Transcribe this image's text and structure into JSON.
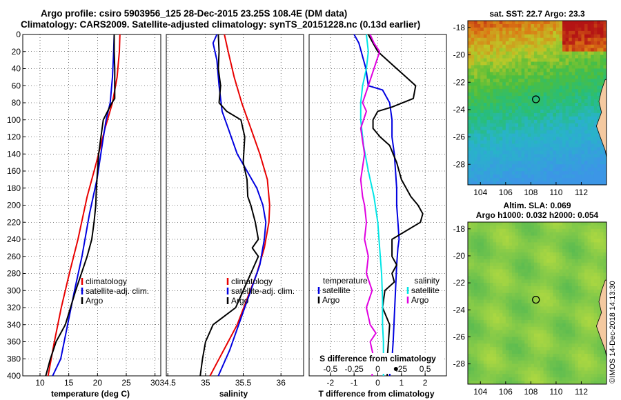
{
  "titles": {
    "line1": "Argo profile: csiro 5903956_125 28-Dec-2015 23.25S 108.4E (DM data)",
    "line2": "Climatology: CARS2009. Satellite-adjusted climatology: synTS_20151228.nc (0.13d earlier)"
  },
  "side_stamp": "©IMOS 14-Dec-2018 14:13:30",
  "colors": {
    "climatology": "#e80000",
    "satellite": "#0000e0",
    "argo": "#000000",
    "temp_diff_sat": "#00e5e5",
    "sal_diff_argo": "#e000e0",
    "map_marker": "#000000"
  },
  "chart_data": [
    {
      "id": "temperature",
      "type": "line",
      "xlabel": "temperature (deg C)",
      "xlim": [
        7,
        31
      ],
      "ylim": [
        0,
        400
      ],
      "y_inverted": true,
      "xticks": [
        10,
        15,
        20,
        25,
        30
      ],
      "yticks": [
        0,
        20,
        40,
        60,
        80,
        100,
        120,
        140,
        160,
        180,
        200,
        220,
        240,
        260,
        280,
        300,
        320,
        340,
        360,
        380,
        400
      ],
      "legend": [
        "climatology",
        "satellite-adj. clim.",
        "Argo"
      ],
      "series": [
        {
          "name": "climatology",
          "color": "climatology",
          "x": [
            23.9,
            23.8,
            23.4,
            22.6,
            21.3,
            19.8,
            18.2,
            16.6,
            15.1,
            13.7,
            12.5,
            11.4
          ],
          "y": [
            0,
            20,
            50,
            80,
            110,
            150,
            190,
            240,
            280,
            320,
            360,
            400
          ]
        },
        {
          "name": "satellite-adj. clim.",
          "color": "satellite",
          "x": [
            22.9,
            22.8,
            22.6,
            22.2,
            21.5,
            20.8,
            19.9,
            18.6,
            17.3,
            16.0,
            14.8,
            13.6,
            12.2
          ],
          "y": [
            0,
            20,
            50,
            80,
            100,
            130,
            170,
            210,
            260,
            300,
            340,
            380,
            400
          ]
        },
        {
          "name": "Argo",
          "color": "argo",
          "x": [
            22.9,
            22.9,
            23.0,
            23.0,
            23.0,
            22.5,
            21.0,
            20.6,
            20.2,
            20.0,
            19.8,
            19.7,
            19.4,
            19.0,
            18.2,
            17.2,
            16.2,
            15.3,
            14.4,
            13.6,
            12.8,
            12.3,
            11.8,
            11.4,
            11.0
          ],
          "y": [
            0,
            20,
            40,
            60,
            75,
            80,
            100,
            120,
            140,
            160,
            180,
            200,
            220,
            240,
            260,
            280,
            300,
            320,
            340,
            350,
            360,
            370,
            380,
            390,
            400
          ]
        }
      ]
    },
    {
      "id": "salinity",
      "type": "line",
      "xlabel": "salinity",
      "xlim": [
        34.48,
        36.3
      ],
      "ylim": [
        0,
        400
      ],
      "y_inverted": true,
      "xticks": [
        34.5,
        35,
        35.5,
        36
      ],
      "xticklabels": [
        "34.5",
        "35",
        "35.5",
        "36"
      ],
      "legend": [
        "climatology",
        "satellite-adj. clim.",
        "Argo"
      ],
      "series": [
        {
          "name": "climatology",
          "color": "climatology",
          "x": [
            35.25,
            35.3,
            35.38,
            35.48,
            35.6,
            35.72,
            35.82,
            35.85,
            35.84,
            35.78,
            35.68,
            35.55,
            35.42,
            35.3,
            35.18,
            35.06
          ],
          "y": [
            0,
            20,
            50,
            80,
            110,
            140,
            170,
            200,
            220,
            250,
            280,
            310,
            340,
            360,
            380,
            400
          ]
        },
        {
          "name": "satellite-adj. clim.",
          "color": "satellite",
          "x": [
            35.15,
            35.1,
            35.15,
            35.18,
            35.22,
            35.3,
            35.42,
            35.55,
            35.68,
            35.76,
            35.8,
            35.78,
            35.72,
            35.6,
            35.48,
            35.32,
            35.17
          ],
          "y": [
            0,
            10,
            30,
            60,
            90,
            110,
            140,
            160,
            180,
            200,
            220,
            240,
            270,
            300,
            330,
            370,
            400
          ]
        },
        {
          "name": "Argo",
          "color": "argo",
          "x": [
            35.17,
            35.18,
            35.17,
            35.2,
            35.18,
            35.28,
            35.47,
            35.52,
            35.5,
            35.55,
            35.56,
            35.6,
            35.66,
            35.7,
            35.62,
            35.7,
            35.6,
            35.5,
            35.4,
            35.25,
            35.1,
            35.0,
            34.96,
            34.93
          ],
          "y": [
            0,
            20,
            40,
            60,
            80,
            90,
            100,
            120,
            150,
            170,
            190,
            200,
            220,
            240,
            250,
            260,
            280,
            300,
            320,
            330,
            340,
            360,
            380,
            400
          ]
        }
      ]
    },
    {
      "id": "differences",
      "type": "line",
      "xlabel": "T difference from climatology",
      "xlabel_top": "S difference from climatology",
      "xlim": [
        -2.9,
        2.9
      ],
      "ylim": [
        0,
        400
      ],
      "y_inverted": true,
      "xticks": [
        -2,
        -1,
        0,
        1,
        2
      ],
      "s_xticks": [
        -0.5,
        -0.25,
        0,
        0.25,
        0.5
      ],
      "s_xticklabels": [
        "-0.5",
        "-0.25",
        "0",
        ".25",
        "0.5"
      ],
      "s_xlim": [
        -0.725,
        0.725
      ],
      "legend_temperature": {
        "title": "temperature",
        "items": [
          "satellite",
          "Argo"
        ]
      },
      "legend_salinity": {
        "title": "salinity",
        "items": [
          "satellite",
          "Argo"
        ]
      },
      "series": [
        {
          "name": "temperature satellite",
          "color": "satellite",
          "x": [
            -1.0,
            -0.8,
            -0.6,
            -0.5,
            -0.4,
            0.2,
            0.5,
            0.6,
            0.6,
            0.7,
            0.75,
            0.8,
            0.8,
            0.85,
            0.9,
            0.85,
            0.8,
            0.75,
            0.7,
            0.65,
            0.6,
            0.5
          ],
          "y": [
            0,
            10,
            30,
            40,
            60,
            65,
            80,
            100,
            120,
            140,
            160,
            180,
            200,
            220,
            240,
            250,
            270,
            300,
            330,
            360,
            380,
            400
          ]
        },
        {
          "name": "temperature Argo",
          "color": "argo",
          "x": [
            -0.4,
            -0.2,
            0.0,
            0.4,
            0.8,
            1.2,
            1.6,
            1.5,
            0.6,
            0.0,
            -0.2,
            -0.2,
            0.1,
            0.5,
            0.8,
            1.0,
            1.4,
            1.7,
            1.9,
            1.8,
            1.2,
            0.6,
            0.6,
            0.8,
            0.6,
            0.7,
            0.3,
            0.2,
            0.5,
            0.4,
            0.4
          ],
          "y": [
            0,
            10,
            20,
            30,
            40,
            50,
            60,
            75,
            85,
            90,
            100,
            110,
            120,
            130,
            150,
            170,
            190,
            200,
            210,
            220,
            230,
            240,
            260,
            270,
            280,
            290,
            300,
            320,
            340,
            380,
            400
          ]
        },
        {
          "name": "salinity satellite",
          "color": "temp_diff_sat",
          "s_x": [
            -0.12,
            -0.1,
            -0.12,
            -0.16,
            -0.18,
            -0.18,
            -0.15,
            -0.1,
            -0.04,
            0.0,
            0.02,
            0.04,
            0.05,
            0.05,
            0.06,
            0.06,
            0.06
          ],
          "y": [
            0,
            20,
            40,
            60,
            80,
            100,
            130,
            160,
            190,
            220,
            250,
            280,
            310,
            340,
            360,
            380,
            400
          ]
        },
        {
          "name": "salinity Argo",
          "color": "sal_diff_argo",
          "s_x": [
            -0.08,
            -0.04,
            0.02,
            -0.04,
            -0.1,
            -0.16,
            -0.12,
            -0.18,
            -0.14,
            -0.18,
            -0.16,
            -0.14,
            -0.12,
            -0.14,
            -0.1,
            -0.12,
            -0.06,
            -0.12,
            -0.08,
            -0.02,
            -0.08,
            -0.04,
            -0.06,
            -0.06
          ],
          "y": [
            0,
            10,
            20,
            40,
            60,
            80,
            90,
            110,
            140,
            170,
            190,
            200,
            220,
            240,
            260,
            280,
            300,
            320,
            340,
            350,
            360,
            380,
            390,
            400
          ]
        }
      ]
    },
    {
      "id": "sst_map",
      "type": "heatmap",
      "title": "sat. SST: 22.7 Argo: 23.3",
      "xticks": [
        104,
        106,
        108,
        110,
        112
      ],
      "yticks": [
        -18,
        -20,
        -22,
        -24,
        -26,
        -28
      ],
      "xlim": [
        103,
        114
      ],
      "ylim": [
        -29.5,
        -17.5
      ],
      "argo_position": {
        "lon": 108.4,
        "lat": -23.25
      }
    },
    {
      "id": "sla_map",
      "type": "heatmap",
      "title": "Altim. SLA: 0.069",
      "subtitle": "Argo h1000: 0.032 h2000: 0.054",
      "xticks": [
        104,
        106,
        108,
        110,
        112
      ],
      "yticks": [
        -18,
        -20,
        -22,
        -24,
        -26,
        -28
      ],
      "xlim": [
        103,
        114
      ],
      "ylim": [
        -29.5,
        -17.5
      ],
      "argo_position": {
        "lon": 108.4,
        "lat": -23.25
      }
    }
  ]
}
